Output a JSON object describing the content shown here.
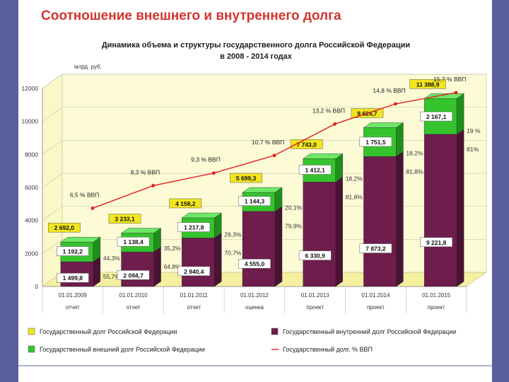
{
  "slide": {
    "title": "Соотношение внешнего и внутреннего долга"
  },
  "colors": {
    "side_bar": "#5a5e9c",
    "title": "#d2342e",
    "internal": "#6e1d4d",
    "external": "#35c42e",
    "total_label": "#f2e51f",
    "gdp_line": "#e22020",
    "plot_floor": "#f4f0a0"
  },
  "chart_data": {
    "type": "bar",
    "title": "Динамика  объема и структуры государственного долга Российской Федерации",
    "subtitle": "в 2008 - 2014 годах",
    "ylabel": "млрд. руб.",
    "ylim": [
      0,
      12000
    ],
    "yticks": [
      "0",
      "2000",
      "4000",
      "6000",
      "8000",
      "10000",
      "12000"
    ],
    "grid": true,
    "categories": [
      "01.01.2009",
      "01.01.2010",
      "01.01.2011",
      "01.01.2012",
      "01.01.2013",
      "01.01.2014",
      "01.01.2015"
    ],
    "category_notes": [
      "отчет",
      "отчет",
      "отчет",
      "оценка",
      "проект",
      "проект",
      "проект"
    ],
    "series": [
      {
        "name": "Государственный внутренний долг Российской Федерации",
        "values": [
          1499.8,
          2094.7,
          2940.4,
          4555.0,
          6330.9,
          7873.2,
          9221.8
        ],
        "labels": [
          "1 499,8",
          "2 094,7",
          "2 940,4",
          "4 555,0",
          "6 330,9",
          "7 873,2",
          "9 221,8"
        ]
      },
      {
        "name": "Государственный внешний долг Российской Федерации",
        "values": [
          1192.2,
          1138.4,
          1217.8,
          1144.3,
          1412.1,
          1751.5,
          2167.1
        ],
        "labels": [
          "1 192,2",
          "1 138,4",
          "1 217,8",
          "1 144,3",
          "1 412,1",
          "1 751,5",
          "2 167,1"
        ]
      },
      {
        "name": "Государственный долг Российской Федерации",
        "values": [
          2692.0,
          3233.1,
          4158.2,
          5699.3,
          7743.0,
          9624.7,
          11388.9
        ],
        "labels": [
          "2 692,0",
          "3 233,1",
          "4 158,2",
          "5 699,3",
          "7 743,0",
          "9 624,7",
          "11 388,9"
        ]
      },
      {
        "name": "Государственный долг, % ВВП",
        "values": [
          6.5,
          8.3,
          9.3,
          10.7,
          13.2,
          14.8,
          15.7
        ],
        "labels": [
          "6,5 % ВВП",
          "8,3 % ВВП",
          "9,3 % ВВП",
          "10,7 % ВВП",
          "13,2 % ВВП",
          "14,8 % ВВП",
          "15,7 % ВВП"
        ]
      }
    ],
    "share_external_labels": [
      "44,3%",
      "35,2%",
      "29,3%",
      "20,1%",
      "18,2%",
      "18,2%",
      "19 %"
    ],
    "share_internal_labels": [
      "55,7%",
      "64,8%",
      "70,7%",
      "79,9%",
      "81,8%",
      "81,8%",
      "81%"
    ],
    "legend": {
      "placement": "bottom",
      "items": [
        {
          "label": "Государственный долг Российской Федерации",
          "kind": "total"
        },
        {
          "label": "Государственный внутренний долг Российской Федерации",
          "kind": "internal"
        },
        {
          "label": "Государственный внешний долг Российской Федерации",
          "kind": "external"
        },
        {
          "label": "Государственный долг, % ВВП",
          "kind": "line"
        }
      ]
    }
  }
}
